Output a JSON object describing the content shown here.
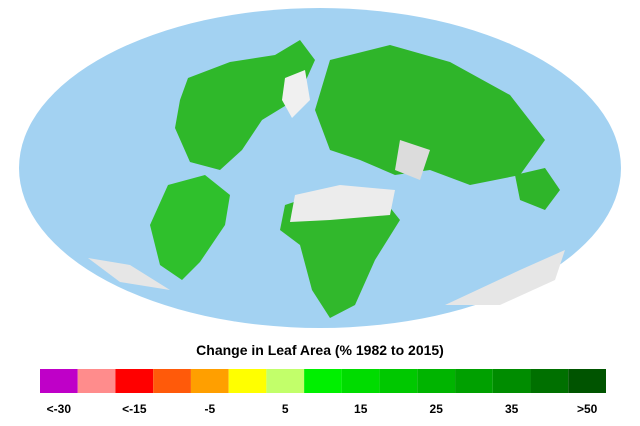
{
  "legend": {
    "title": "Change in Leaf Area (% 1982 to 2015)",
    "colors": [
      "#bf00c8",
      "#ff8c8c",
      "#ff0000",
      "#ff5a0a",
      "#ff9f00",
      "#ffff00",
      "#c2ff6a",
      "#00f000",
      "#00dc00",
      "#00c800",
      "#00b400",
      "#00a000",
      "#008c00",
      "#007000",
      "#005400"
    ],
    "labels": [
      "<-30",
      "<-15",
      "-5",
      "5",
      "15",
      "25",
      "35",
      ">50"
    ]
  }
}
